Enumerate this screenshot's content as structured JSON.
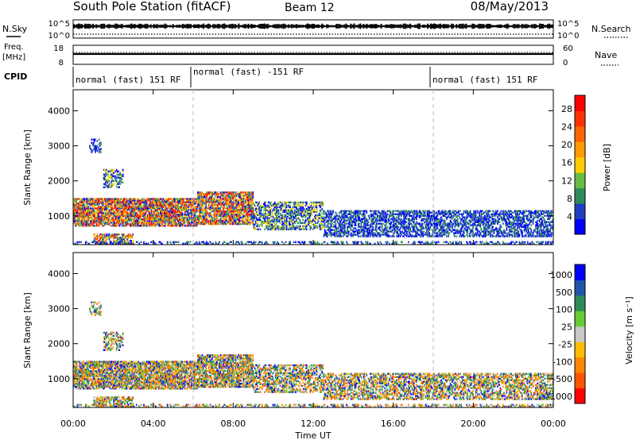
{
  "header": {
    "station": "South Pole Station (fitACF)",
    "beam": "Beam 12",
    "date": "08/May/2013"
  },
  "sky_panel": {
    "label": "N.Sky",
    "left_ticks": [
      "10^5",
      "10^0"
    ],
    "right_label": "N.Search",
    "right_ticks": [
      "10^5",
      "10^0"
    ]
  },
  "freq_panel": {
    "label_line1": "Freq.",
    "label_line2": "[MHz]",
    "left_ticks": [
      "18",
      "8"
    ],
    "right_label": "Nave",
    "right_ticks": [
      "60",
      "0"
    ]
  },
  "cpid": {
    "label": "CPID",
    "segments": [
      {
        "label": "normal (fast) 151 RF",
        "start_h": 0,
        "end_h": 6
      },
      {
        "label": "normal (fast) -151 RF",
        "start_h": 6,
        "end_h": 18
      },
      {
        "label": "normal (fast) 151 RF",
        "start_h": 18,
        "end_h": 24
      }
    ]
  },
  "colors": {
    "power": [
      "#0000ff",
      "#1f3fbf",
      "#2e8b57",
      "#66bb44",
      "#ffcc00",
      "#ff9900",
      "#ff6600",
      "#ff3300",
      "#ff0000"
    ],
    "velocity": [
      "#ff0000",
      "#ff5500",
      "#ff8800",
      "#ffbb00",
      "#c8c8c8",
      "#66cc33",
      "#2e8b57",
      "#2255aa",
      "#0000ff"
    ]
  },
  "chart_data": [
    {
      "type": "heatmap",
      "name": "power",
      "ylabel": "Slant Range [km]",
      "y_ticks": [
        1000,
        2000,
        3000,
        4000
      ],
      "ylim": [
        180,
        4600
      ],
      "xlim": [
        0,
        24
      ],
      "colorbar": {
        "label": "Power [dB]",
        "ticks": [
          4,
          8,
          12,
          16,
          20,
          24,
          28
        ],
        "range": [
          0,
          31
        ]
      }
    },
    {
      "type": "heatmap",
      "name": "velocity",
      "ylabel": "Slant Range [km]",
      "y_ticks": [
        1000,
        2000,
        3000,
        4000
      ],
      "ylim": [
        180,
        4600
      ],
      "xlim": [
        0,
        24
      ],
      "xlabel": "Time UT",
      "x_ticks": [
        "00:00",
        "04:00",
        "08:00",
        "12:00",
        "16:00",
        "20:00",
        "00:00"
      ],
      "colorbar": {
        "label": "Velocity [m s⁻¹]",
        "ticks": [
          "1000",
          "500",
          "100",
          "25",
          "-25",
          "-100",
          "-500",
          "-1000"
        ]
      }
    }
  ]
}
